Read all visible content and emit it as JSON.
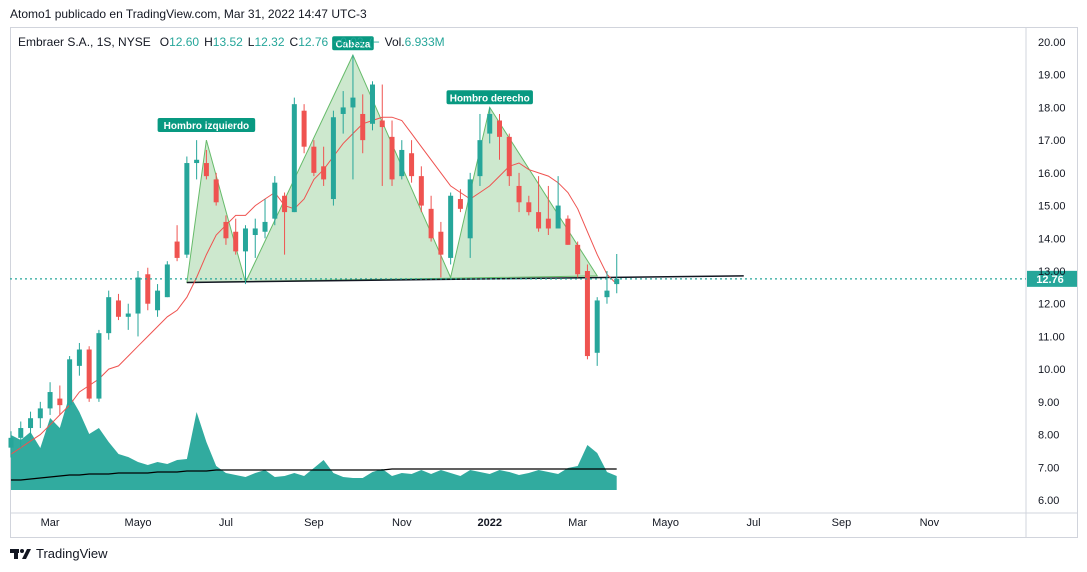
{
  "caption": "Atomo1 publicado en TradingView.com, Mar 31, 2022 14:47 UTC-3",
  "legend": {
    "symbol": "Embraer S.A., 1S, NYSE",
    "o_label": "O",
    "o_value": "12.60",
    "h_label": "H",
    "h_value": "13.52",
    "l_label": "L",
    "l_value": "12.32",
    "c_label": "C",
    "c_value": "12.76",
    "change": "−0.03",
    "change_pct": "(−",
    "vol_label": "Vol.",
    "vol_value": "6.933M"
  },
  "footer": {
    "brand": "TradingView",
    "logo_icon": "tradingview-logo-icon"
  },
  "colors": {
    "up": "#26a69a",
    "down": "#ef5350",
    "pattern_fill": "#c8e6c9",
    "pattern_stroke": "#66bb6a",
    "ma": "#ef5350",
    "volume": "#26a69a",
    "volume_ma": "#000000",
    "price_line": "#26a69a",
    "neckline": "#131722"
  },
  "chart_data": {
    "type": "candlestick",
    "title": "",
    "ylim": [
      6.0,
      20.0
    ],
    "yticks": [
      "20.00",
      "19.00",
      "18.00",
      "17.00",
      "16.00",
      "15.00",
      "14.00",
      "13.00",
      "12.00",
      "11.00",
      "10.00",
      "9.00",
      "8.00",
      "7.00",
      "6.00"
    ],
    "xticks": [
      {
        "label": "Mar",
        "week": 4,
        "bold": false
      },
      {
        "label": "Mayo",
        "week": 13,
        "bold": false
      },
      {
        "label": "Jul",
        "week": 22,
        "bold": false
      },
      {
        "label": "Sep",
        "week": 31,
        "bold": false
      },
      {
        "label": "Nov",
        "week": 40,
        "bold": false
      },
      {
        "label": "2022",
        "week": 49,
        "bold": true
      },
      {
        "label": "Mar",
        "week": 58,
        "bold": false
      },
      {
        "label": "Mayo",
        "week": 67,
        "bold": false
      },
      {
        "label": "Jul",
        "week": 76,
        "bold": false
      },
      {
        "label": "Sep",
        "week": 85,
        "bold": false
      },
      {
        "label": "Nov",
        "week": 94,
        "bold": false
      }
    ],
    "last_price": "12.76",
    "last_price_value": 12.76,
    "candles": [
      {
        "o": 7.6,
        "h": 8.1,
        "l": 7.3,
        "c": 7.9
      },
      {
        "o": 7.9,
        "h": 8.4,
        "l": 7.6,
        "c": 8.2
      },
      {
        "o": 8.2,
        "h": 8.7,
        "l": 7.9,
        "c": 8.5
      },
      {
        "o": 8.5,
        "h": 9.0,
        "l": 8.2,
        "c": 8.8
      },
      {
        "o": 8.8,
        "h": 9.6,
        "l": 8.6,
        "c": 9.3
      },
      {
        "o": 9.1,
        "h": 9.5,
        "l": 8.6,
        "c": 8.9
      },
      {
        "o": 8.9,
        "h": 10.4,
        "l": 8.8,
        "c": 10.3
      },
      {
        "o": 10.1,
        "h": 10.8,
        "l": 9.8,
        "c": 10.6
      },
      {
        "o": 10.6,
        "h": 10.7,
        "l": 9.0,
        "c": 9.1
      },
      {
        "o": 9.1,
        "h": 11.2,
        "l": 9.0,
        "c": 11.1
      },
      {
        "o": 11.1,
        "h": 12.4,
        "l": 10.9,
        "c": 12.2
      },
      {
        "o": 12.1,
        "h": 12.3,
        "l": 11.5,
        "c": 11.6
      },
      {
        "o": 11.6,
        "h": 12.0,
        "l": 11.2,
        "c": 11.7
      },
      {
        "o": 11.7,
        "h": 13.0,
        "l": 11.0,
        "c": 12.8
      },
      {
        "o": 12.9,
        "h": 13.1,
        "l": 11.8,
        "c": 12.0
      },
      {
        "o": 11.8,
        "h": 12.6,
        "l": 11.6,
        "c": 12.4
      },
      {
        "o": 12.2,
        "h": 13.3,
        "l": 12.2,
        "c": 13.2
      },
      {
        "o": 13.9,
        "h": 14.4,
        "l": 13.3,
        "c": 13.4
      },
      {
        "o": 13.5,
        "h": 16.5,
        "l": 13.4,
        "c": 16.3
      },
      {
        "o": 16.3,
        "h": 17.0,
        "l": 15.8,
        "c": 16.4
      },
      {
        "o": 16.3,
        "h": 16.7,
        "l": 15.8,
        "c": 15.9
      },
      {
        "o": 15.8,
        "h": 16.0,
        "l": 15.0,
        "c": 15.1
      },
      {
        "o": 14.5,
        "h": 14.7,
        "l": 13.8,
        "c": 14.0
      },
      {
        "o": 14.2,
        "h": 14.6,
        "l": 13.5,
        "c": 13.6
      },
      {
        "o": 13.6,
        "h": 14.4,
        "l": 12.6,
        "c": 14.3
      },
      {
        "o": 14.1,
        "h": 14.6,
        "l": 13.4,
        "c": 14.3
      },
      {
        "o": 14.2,
        "h": 15.2,
        "l": 14.0,
        "c": 14.5
      },
      {
        "o": 14.6,
        "h": 15.9,
        "l": 14.4,
        "c": 15.7
      },
      {
        "o": 15.3,
        "h": 15.4,
        "l": 13.5,
        "c": 14.8
      },
      {
        "o": 14.8,
        "h": 18.3,
        "l": 14.8,
        "c": 18.1
      },
      {
        "o": 17.9,
        "h": 18.1,
        "l": 16.6,
        "c": 16.8
      },
      {
        "o": 16.8,
        "h": 17.0,
        "l": 15.9,
        "c": 16.0
      },
      {
        "o": 16.2,
        "h": 16.8,
        "l": 15.6,
        "c": 15.8
      },
      {
        "o": 15.2,
        "h": 17.9,
        "l": 15.0,
        "c": 17.7
      },
      {
        "o": 17.8,
        "h": 18.5,
        "l": 17.2,
        "c": 18.0
      },
      {
        "o": 18.0,
        "h": 19.6,
        "l": 15.8,
        "c": 18.3
      },
      {
        "o": 17.8,
        "h": 18.4,
        "l": 16.6,
        "c": 17.0
      },
      {
        "o": 17.5,
        "h": 18.8,
        "l": 17.3,
        "c": 18.7
      },
      {
        "o": 17.6,
        "h": 18.7,
        "l": 15.6,
        "c": 17.4
      },
      {
        "o": 17.1,
        "h": 17.6,
        "l": 15.6,
        "c": 15.8
      },
      {
        "o": 15.9,
        "h": 17.0,
        "l": 15.8,
        "c": 16.7
      },
      {
        "o": 16.6,
        "h": 17.0,
        "l": 15.7,
        "c": 15.9
      },
      {
        "o": 15.9,
        "h": 16.2,
        "l": 14.8,
        "c": 15.0
      },
      {
        "o": 14.9,
        "h": 15.3,
        "l": 13.9,
        "c": 14.0
      },
      {
        "o": 14.2,
        "h": 14.5,
        "l": 12.8,
        "c": 13.5
      },
      {
        "o": 13.4,
        "h": 15.4,
        "l": 13.2,
        "c": 15.3
      },
      {
        "o": 15.2,
        "h": 15.5,
        "l": 14.8,
        "c": 14.9
      },
      {
        "o": 14.0,
        "h": 16.0,
        "l": 13.4,
        "c": 15.8
      },
      {
        "o": 15.9,
        "h": 17.8,
        "l": 15.6,
        "c": 17.0
      },
      {
        "o": 17.2,
        "h": 18.0,
        "l": 16.9,
        "c": 17.8
      },
      {
        "o": 17.6,
        "h": 17.8,
        "l": 16.4,
        "c": 17.1
      },
      {
        "o": 17.1,
        "h": 17.2,
        "l": 15.6,
        "c": 15.9
      },
      {
        "o": 15.6,
        "h": 16.0,
        "l": 14.8,
        "c": 15.1
      },
      {
        "o": 15.1,
        "h": 15.3,
        "l": 14.7,
        "c": 14.8
      },
      {
        "o": 14.8,
        "h": 15.9,
        "l": 14.2,
        "c": 14.3
      },
      {
        "o": 14.6,
        "h": 15.6,
        "l": 14.1,
        "c": 14.3
      },
      {
        "o": 14.3,
        "h": 15.9,
        "l": 14.3,
        "c": 15.0
      },
      {
        "o": 14.6,
        "h": 14.7,
        "l": 13.8,
        "c": 13.8
      },
      {
        "o": 13.8,
        "h": 13.9,
        "l": 12.8,
        "c": 12.9
      },
      {
        "o": 13.0,
        "h": 13.2,
        "l": 10.3,
        "c": 10.4
      },
      {
        "o": 10.5,
        "h": 12.2,
        "l": 10.1,
        "c": 12.1
      },
      {
        "o": 12.2,
        "h": 13.0,
        "l": 12.0,
        "c": 12.4
      },
      {
        "o": 12.6,
        "h": 13.52,
        "l": 12.32,
        "c": 12.76
      }
    ],
    "ma": [
      7.4,
      7.6,
      7.8,
      8.0,
      8.3,
      8.6,
      8.9,
      9.3,
      9.5,
      9.7,
      10.0,
      10.1,
      10.4,
      10.7,
      11.0,
      11.3,
      11.6,
      11.8,
      12.2,
      12.8,
      13.5,
      14.1,
      14.4,
      14.7,
      14.7,
      15.0,
      15.2,
      15.4,
      15.0,
      14.9,
      15.2,
      15.8,
      16.1,
      16.5,
      16.9,
      17.2,
      17.5,
      17.6,
      17.7,
      17.7,
      17.6,
      17.2,
      16.8,
      16.4,
      16.0,
      15.6,
      15.4,
      15.2,
      15.4,
      15.6,
      15.9,
      16.2,
      16.3,
      16.1,
      16.0,
      15.9,
      15.7,
      15.4,
      14.9,
      14.2,
      13.5,
      12.9,
      12.6
    ],
    "volume": [
      0.55,
      0.5,
      0.58,
      0.42,
      0.72,
      0.62,
      0.95,
      0.78,
      0.56,
      0.62,
      0.48,
      0.36,
      0.33,
      0.28,
      0.25,
      0.28,
      0.26,
      0.3,
      0.31,
      0.78,
      0.48,
      0.24,
      0.17,
      0.15,
      0.13,
      0.17,
      0.2,
      0.13,
      0.14,
      0.17,
      0.14,
      0.22,
      0.3,
      0.17,
      0.13,
      0.12,
      0.12,
      0.18,
      0.21,
      0.14,
      0.17,
      0.16,
      0.2,
      0.16,
      0.2,
      0.17,
      0.14,
      0.2,
      0.18,
      0.16,
      0.2,
      0.18,
      0.15,
      0.17,
      0.2,
      0.18,
      0.16,
      0.22,
      0.24,
      0.45,
      0.37,
      0.18,
      0.14
    ],
    "volume_ma": [
      0.1,
      0.1,
      0.11,
      0.12,
      0.13,
      0.14,
      0.15,
      0.15,
      0.16,
      0.16,
      0.16,
      0.17,
      0.17,
      0.17,
      0.17,
      0.18,
      0.18,
      0.18,
      0.19,
      0.19,
      0.19,
      0.2,
      0.2,
      0.2,
      0.2,
      0.2,
      0.2,
      0.2,
      0.2,
      0.2,
      0.2,
      0.2,
      0.2,
      0.2,
      0.2,
      0.2,
      0.2,
      0.2,
      0.2,
      0.21,
      0.21,
      0.21,
      0.21,
      0.21,
      0.21,
      0.21,
      0.21,
      0.21,
      0.21,
      0.21,
      0.21,
      0.21,
      0.21,
      0.21,
      0.21,
      0.21,
      0.21,
      0.21,
      0.21,
      0.21,
      0.21,
      0.21,
      0.21
    ],
    "pattern": {
      "name": "head-and-shoulders",
      "points": [
        {
          "week": 18,
          "price": 12.65
        },
        {
          "week": 20,
          "price": 17.0
        },
        {
          "week": 24,
          "price": 12.65
        },
        {
          "week": 35,
          "price": 19.6
        },
        {
          "week": 45,
          "price": 12.8
        },
        {
          "week": 49,
          "price": 18.0
        },
        {
          "week": 60,
          "price": 12.85
        }
      ],
      "neckline": [
        {
          "week": 18,
          "price": 12.65
        },
        {
          "week": 75,
          "price": 12.85
        }
      ],
      "labels": [
        {
          "text": "Hombro izquierdo",
          "week": 20,
          "price": 17.4
        },
        {
          "text": "Cabeza",
          "week": 35,
          "price": 19.9
        },
        {
          "text": "Hombro derecho",
          "week": 49,
          "price": 18.25
        }
      ]
    }
  }
}
